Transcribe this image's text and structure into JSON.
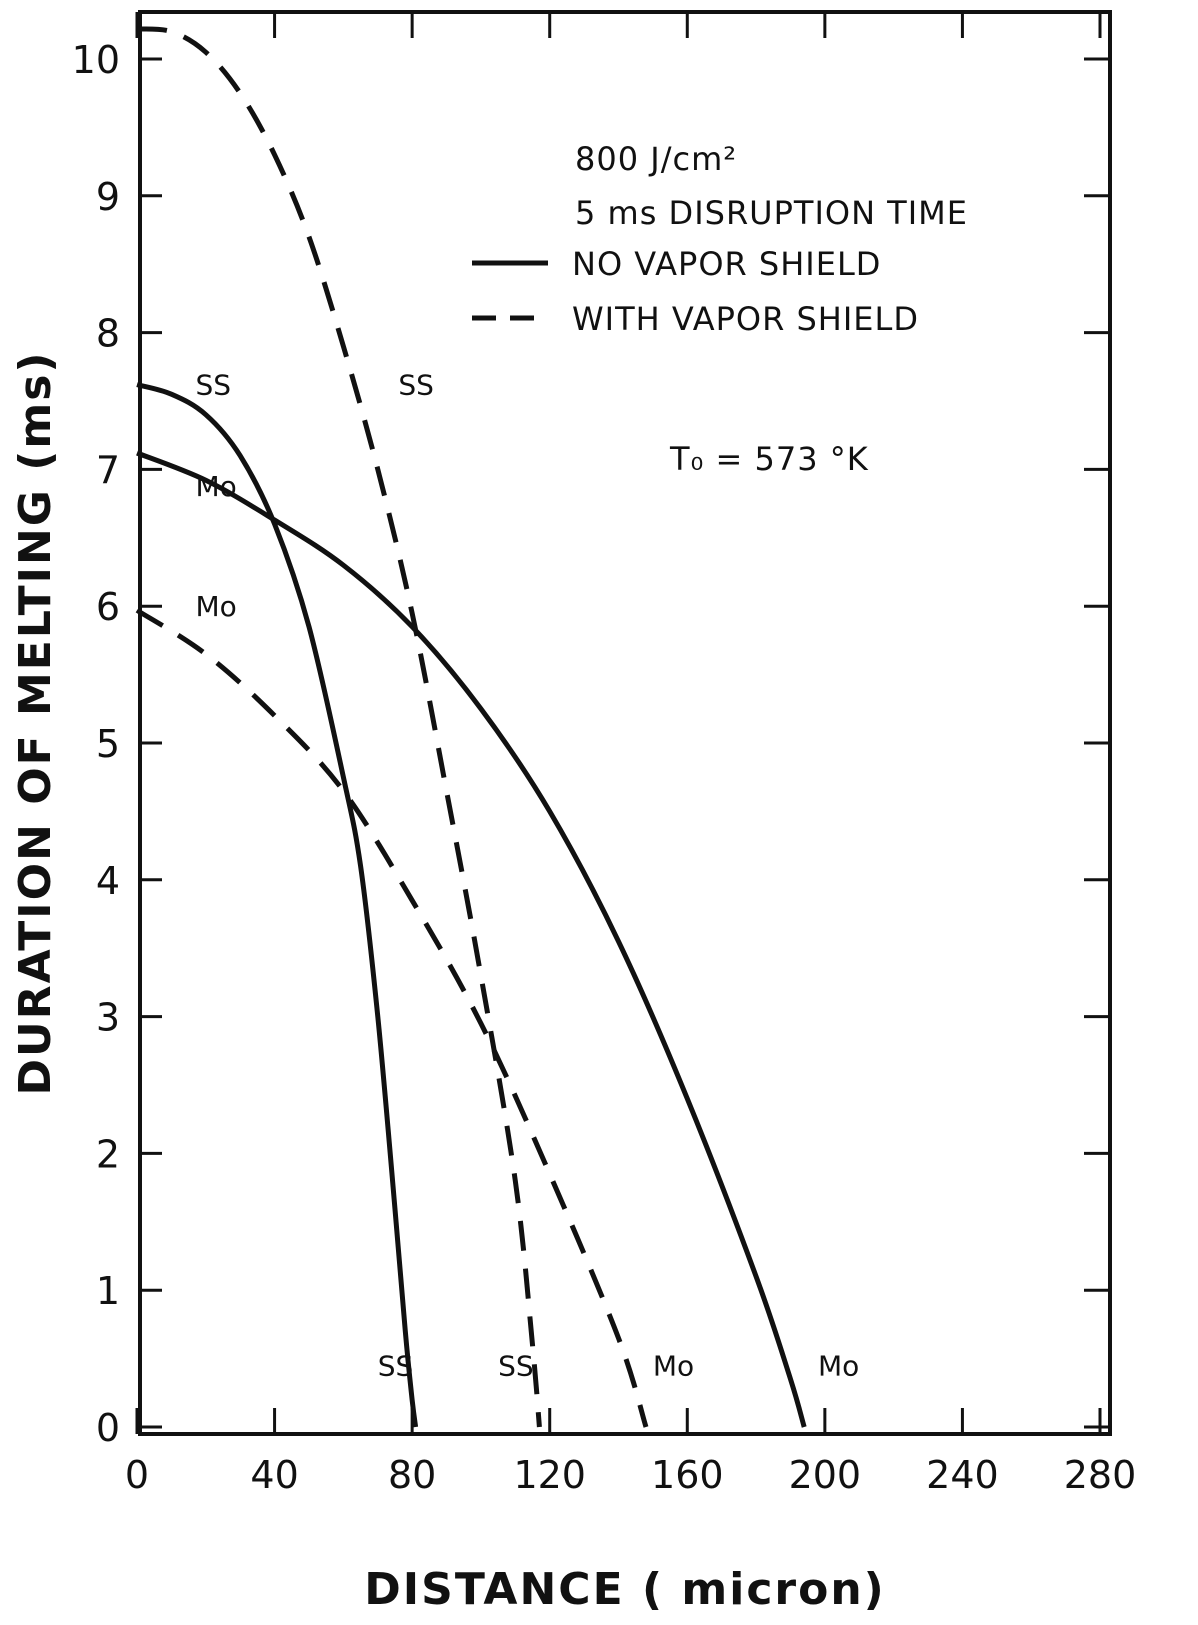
{
  "chart_data": {
    "type": "line",
    "xlabel": "DISTANCE ( micron)",
    "ylabel": "DURATION OF MELTING (ms)",
    "xlim": [
      0,
      280
    ],
    "ylim": [
      0,
      10.5
    ],
    "x_ticks": [
      0,
      40,
      80,
      120,
      160,
      200,
      240,
      280
    ],
    "y_ticks": [
      0,
      1,
      2,
      3,
      4,
      5,
      6,
      7,
      8,
      9,
      10
    ],
    "grid": false,
    "legend": {
      "position": "top-right",
      "lines": [
        "800 J/cm²",
        "5 ms DISRUPTION TIME"
      ],
      "entries": [
        {
          "label": "NO VAPOR SHIELD",
          "style": "solid"
        },
        {
          "label": "WITH VAPOR SHIELD",
          "style": "dashed"
        }
      ]
    },
    "annotations": [
      "T₀ = 573 °K"
    ],
    "series": [
      {
        "name": "SS",
        "style": "solid",
        "x": [
          0,
          10,
          20,
          30,
          40,
          50,
          60,
          65,
          70,
          75,
          78,
          80,
          81
        ],
        "y": [
          7.62,
          7.55,
          7.4,
          7.1,
          6.6,
          5.85,
          4.75,
          4.1,
          3.0,
          1.6,
          0.7,
          0.2,
          0
        ]
      },
      {
        "name": "Mo",
        "style": "solid",
        "x": [
          0,
          20,
          40,
          60,
          80,
          100,
          120,
          140,
          160,
          180,
          190,
          194
        ],
        "y": [
          7.12,
          6.92,
          6.63,
          6.3,
          5.85,
          5.25,
          4.5,
          3.55,
          2.4,
          1.1,
          0.35,
          0
        ]
      },
      {
        "name": "SS",
        "style": "dashed",
        "x": [
          0,
          10,
          20,
          30,
          40,
          50,
          60,
          70,
          80,
          90,
          100,
          110,
          115,
          117
        ],
        "y": [
          10.22,
          10.2,
          10.05,
          9.75,
          9.3,
          8.7,
          7.9,
          7.0,
          5.95,
          4.65,
          3.3,
          1.8,
          0.6,
          0
        ]
      },
      {
        "name": "Mo",
        "style": "dashed",
        "x": [
          0,
          20,
          40,
          60,
          80,
          100,
          120,
          140,
          148
        ],
        "y": [
          5.97,
          5.65,
          5.2,
          4.65,
          3.85,
          2.95,
          1.85,
          0.65,
          0
        ]
      }
    ],
    "curve_labels": [
      {
        "text": "SS",
        "x": 17,
        "y": 7.62
      },
      {
        "text": "Mo",
        "x": 17,
        "y": 6.88
      },
      {
        "text": "Mo",
        "x": 17,
        "y": 6.0
      },
      {
        "text": "SS",
        "x": 76,
        "y": 7.62
      },
      {
        "text": "SS",
        "x": 70,
        "y": 0.45
      },
      {
        "text": "SS",
        "x": 105,
        "y": 0.45
      },
      {
        "text": "Mo",
        "x": 150,
        "y": 0.45
      },
      {
        "text": "Mo",
        "x": 198,
        "y": 0.45
      }
    ]
  }
}
